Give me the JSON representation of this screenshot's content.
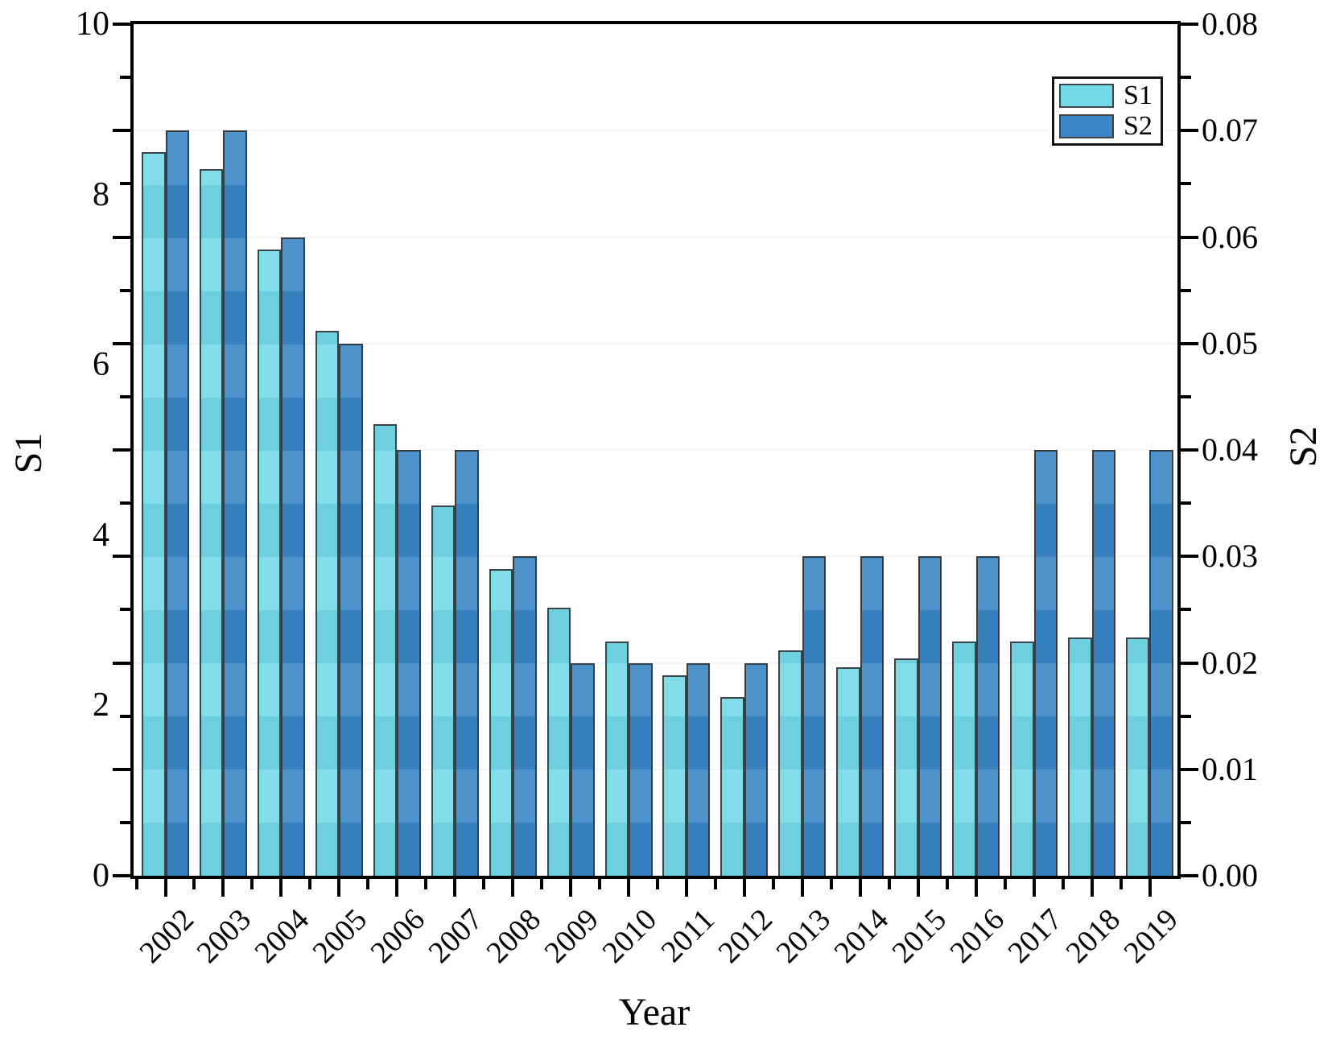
{
  "chart_data": {
    "type": "bar",
    "title": "",
    "xlabel": "Year",
    "left_axis_title": "S1",
    "right_axis_title": "S2",
    "categories": [
      "2002",
      "2003",
      "2004",
      "2005",
      "2006",
      "2007",
      "2008",
      "2009",
      "2010",
      "2011",
      "2012",
      "2013",
      "2014",
      "2015",
      "2016",
      "2017",
      "2018",
      "2019"
    ],
    "series": [
      {
        "name": "S1",
        "axis": "left",
        "color": "#74D9E7",
        "values": [
          8.5,
          8.3,
          7.35,
          6.4,
          5.3,
          4.35,
          3.6,
          3.15,
          2.75,
          2.35,
          2.1,
          2.65,
          2.45,
          2.55,
          2.75,
          2.75,
          2.8,
          2.8
        ]
      },
      {
        "name": "S2",
        "axis": "right",
        "color": "#3A86C6",
        "values": [
          0.07,
          0.07,
          0.06,
          0.05,
          0.04,
          0.04,
          0.03,
          0.02,
          0.02,
          0.02,
          0.02,
          0.03,
          0.03,
          0.03,
          0.03,
          0.04,
          0.04,
          0.04
        ]
      }
    ],
    "left_axis": {
      "min": 0,
      "max": 10,
      "tick_labels": [
        "0",
        "2",
        "4",
        "6",
        "8",
        "10"
      ]
    },
    "right_axis": {
      "min": 0.0,
      "max": 0.08,
      "tick_labels": [
        "0.00",
        "0.01",
        "0.02",
        "0.03",
        "0.04",
        "0.05",
        "0.06",
        "0.07",
        "0.08"
      ]
    },
    "legend": {
      "position": "top-right",
      "entries": [
        "S1",
        "S2"
      ]
    },
    "grid": "faint-horizontal",
    "layout": {
      "minor_per_major": 2,
      "x_tick_style": "major-at-year-minor-between"
    }
  }
}
